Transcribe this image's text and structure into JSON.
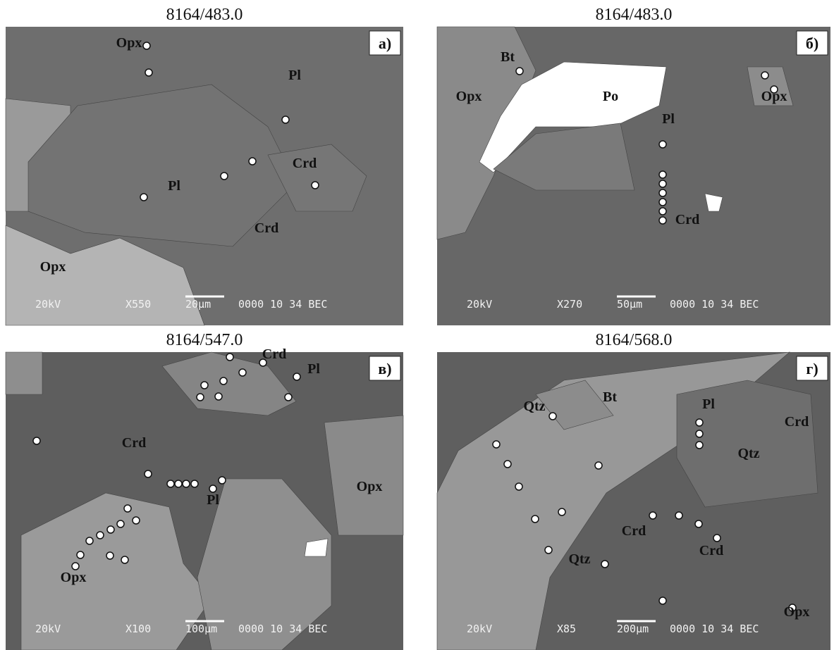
{
  "panels": [
    {
      "title": "8164/483.0",
      "letter": "а)",
      "labels": [
        "Opx",
        "Pl",
        "Crd",
        "Pl",
        "Crd",
        "Opx"
      ],
      "footer": {
        "voltage": "20kV",
        "magnification": "X550",
        "scale": "20µm",
        "info": "0000 10 34 BEC"
      }
    },
    {
      "title": "8164/483.0",
      "letter": "б)",
      "labels": [
        "Bt",
        "Opx",
        "Po",
        "Opx",
        "Pl",
        "Crd"
      ],
      "footer": {
        "voltage": "20kV",
        "magnification": "X270",
        "scale": "50µm",
        "info": "0000 10 34 BEC"
      }
    },
    {
      "title": "8164/547.0",
      "letter": "в)",
      "labels": [
        "Crd",
        "Pl",
        "Crd",
        "Opx",
        "Pl",
        "Opx"
      ],
      "footer": {
        "voltage": "20kV",
        "magnification": "X100",
        "scale": "100µm",
        "info": "0000 10 34 BEC"
      }
    },
    {
      "title": "8164/568.0",
      "letter": "г)",
      "labels": [
        "Bt",
        "Qtz",
        "Pl",
        "Crd",
        "Qtz",
        "Crd",
        "Crd",
        "Qtz",
        "Opx"
      ],
      "footer": {
        "voltage": "20kV",
        "magnification": "X85",
        "scale": "200µm",
        "info": "0000 10 34 BEC"
      }
    }
  ]
}
